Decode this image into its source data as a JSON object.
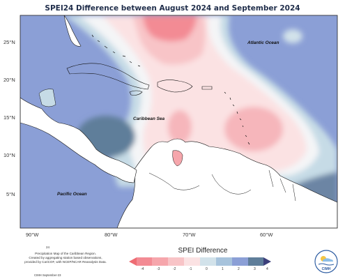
{
  "title": "SPEI24 Difference between August 2024 and September 2024",
  "map": {
    "region": "Caribbean",
    "lat_ticks": [
      "25°N",
      "20°N",
      "15°N",
      "10°N",
      "5°N"
    ],
    "lon_ticks": [
      "90°W",
      "80°W",
      "70°W",
      "60°W"
    ],
    "labels": {
      "atlantic": "Atlantic Ocean",
      "caribbean": "Caribbean Sea",
      "pacific": "Pacific Ocean"
    }
  },
  "legend": {
    "title": "SPEI Difference",
    "ticks": [
      "-4",
      "-3",
      "-2",
      "-1",
      "0",
      "1",
      "2",
      "3",
      "4"
    ],
    "colors": {
      "neg4": "#f38b94",
      "neg3": "#f6a6ac",
      "neg2": "#f8c4c7",
      "neg1": "#fbe2e3",
      "pos1": "#d2e2ea",
      "pos2": "#a7c3dc",
      "pos3": "#8b9fd6",
      "pos4": "#5f7e9a",
      "darkest": "#3c3f7a",
      "reddest": "#ee6c73"
    }
  },
  "footer": {
    "number": "24",
    "line1": "Precipitation Map of the Caribbean Region.",
    "line2": "Created by aggregating station based observations,",
    "line3": "provided by CariCOF, with NCEP/NCAR Reanalysis Data.",
    "citation": "CIMH September-23"
  },
  "logo": {
    "text": "CIMH"
  }
}
